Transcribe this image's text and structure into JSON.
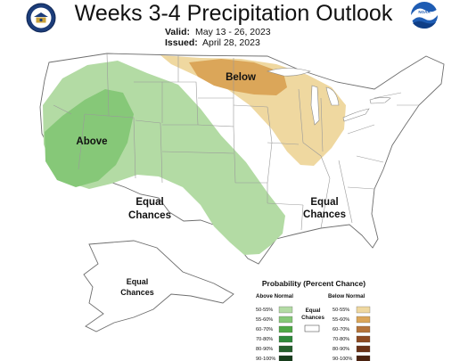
{
  "header": {
    "title": "Weeks 3-4 Precipitation Outlook",
    "valid_label": "Valid:",
    "valid_value": "May 13 - 26, 2023",
    "issued_label": "Issued:",
    "issued_value": "April 28, 2023"
  },
  "map": {
    "region_labels": {
      "above": "Above",
      "below": "Below",
      "equal_west": [
        "Equal",
        "Chances"
      ],
      "equal_east": [
        "Equal",
        "Chances"
      ],
      "equal_alaska": [
        "Equal",
        "Chances"
      ]
    },
    "fill_colors": {
      "above_50_55": "#b3dba4",
      "above_55_60": "#86c878",
      "below_50_55": "#efd8a0",
      "below_55_60": "#dba659"
    }
  },
  "legend": {
    "title": "Probability (Percent Chance)",
    "above_heading": "Above Normal",
    "below_heading": "Below Normal",
    "equal_heading": [
      "Equal",
      "Chances"
    ],
    "equal_color": "#ffffff",
    "above": [
      {
        "label": "50-55%",
        "color": "#b3dba4"
      },
      {
        "label": "55-60%",
        "color": "#86c878"
      },
      {
        "label": "60-70%",
        "color": "#4fa846"
      },
      {
        "label": "70-80%",
        "color": "#2e8a3a"
      },
      {
        "label": "80-90%",
        "color": "#24602c"
      },
      {
        "label": "90-100%",
        "color": "#173d1c"
      }
    ],
    "below": [
      {
        "label": "50-55%",
        "color": "#efd8a0"
      },
      {
        "label": "55-60%",
        "color": "#dba659"
      },
      {
        "label": "60-70%",
        "color": "#b5743a"
      },
      {
        "label": "70-80%",
        "color": "#8e4b22"
      },
      {
        "label": "80-90%",
        "color": "#6b3217"
      },
      {
        "label": "90-100%",
        "color": "#4a2210"
      }
    ]
  },
  "logos": {
    "left": "doc-seal-icon",
    "right": "noaa-logo-icon"
  }
}
